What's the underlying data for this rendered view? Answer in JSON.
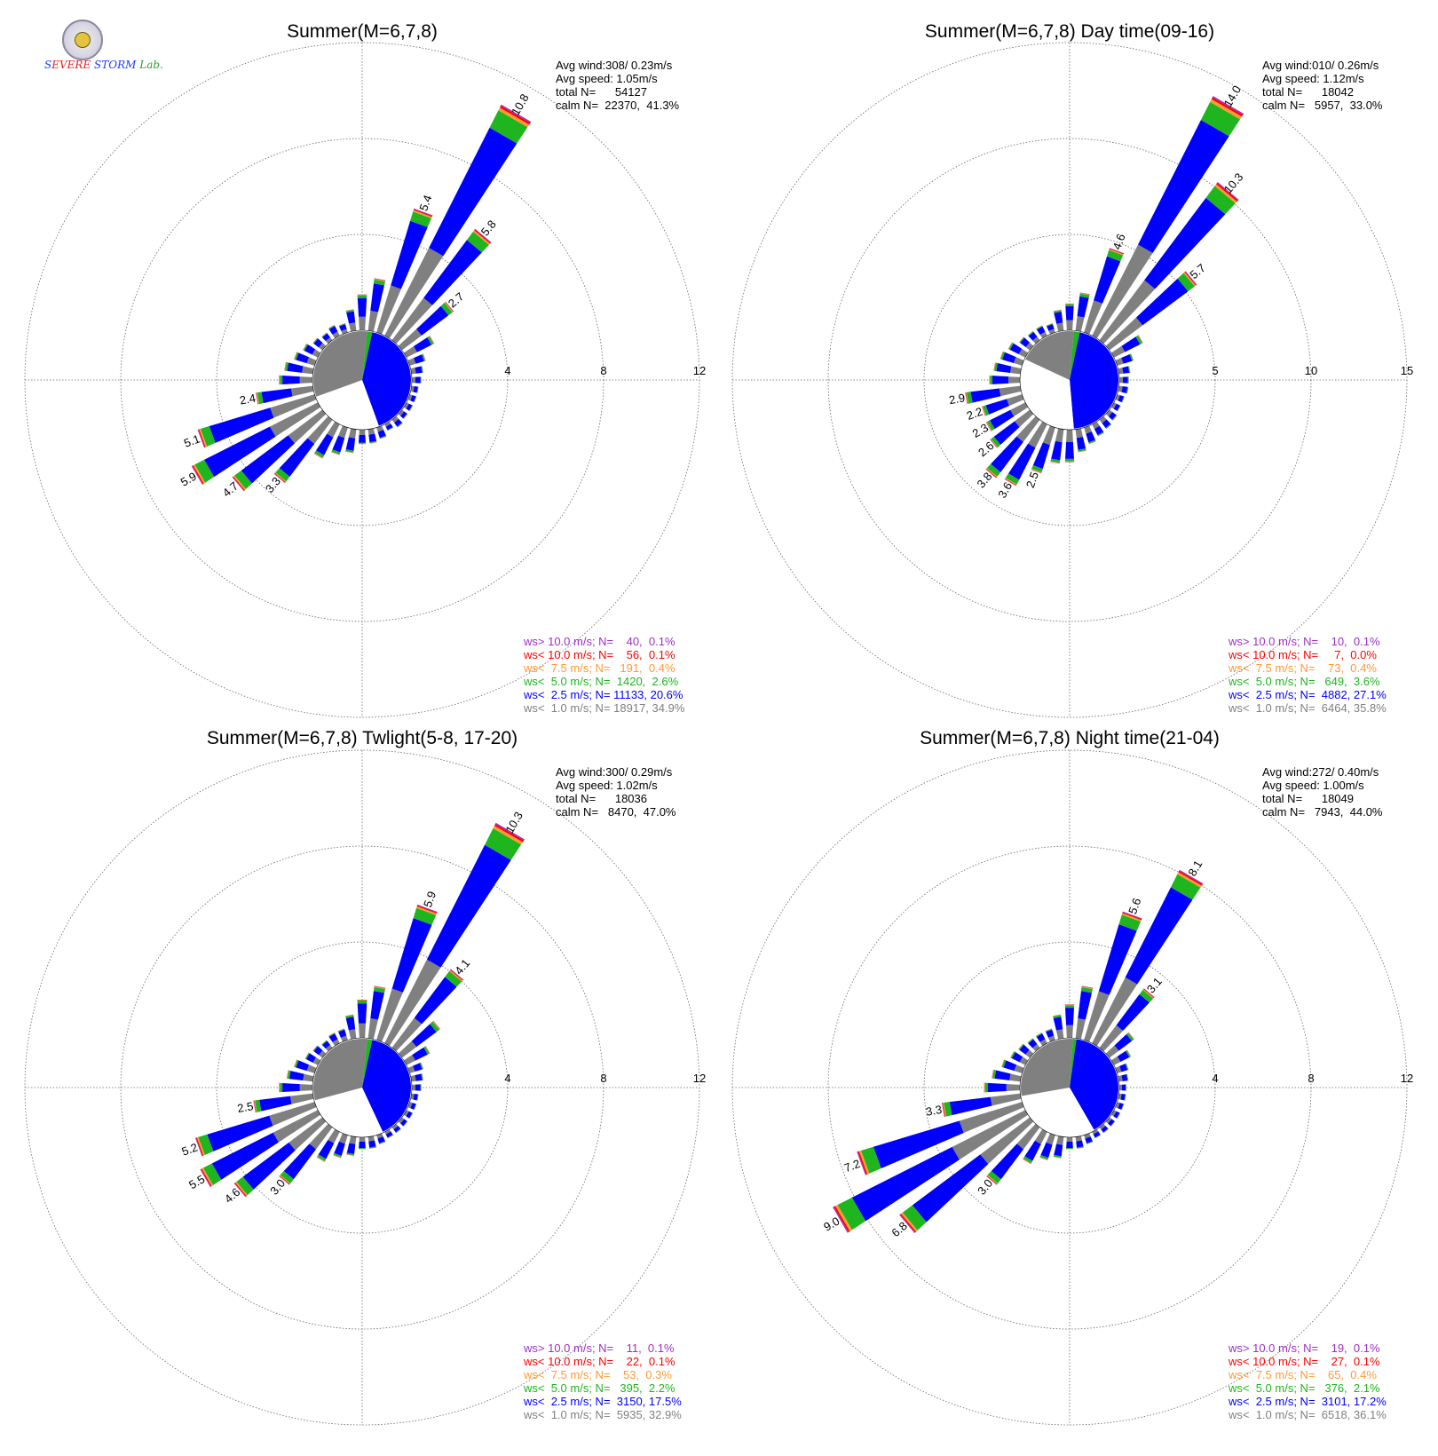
{
  "logo": {
    "part1": "S",
    "part2": "EVERE",
    "part3": "STORM",
    "part4": "Lab."
  },
  "colors": {
    "ws_gt_10": "#9b30c8",
    "ws_lt_10": "#ff0000",
    "ws_lt_7_5": "#ff9933",
    "ws_lt_5": "#1fb51f",
    "ws_lt_2_5": "#0000ff",
    "ws_lt_1": "#808080",
    "grid": "#666666"
  },
  "chart_data": [
    {
      "type": "windrose",
      "title": "Summer(M=6,7,8)",
      "rings": [
        4,
        8,
        12
      ],
      "ring_labels": [
        "4",
        "8",
        "12"
      ],
      "stats": [
        "Avg wind:308/ 0.23m/s",
        "Avg speed: 1.05m/s",
        "total N=      54127",
        "calm N=  22370,  41.3%"
      ],
      "legend": [
        "ws> 10.0 m/s; N=    40,  0.1%",
        "ws< 10.0 m/s; N=    56,  0.1%",
        "ws<  7.5 m/s; N=   191,  0.4%",
        "ws<  5.0 m/s; N=  1420,  2.6%",
        "ws<  2.5 m/s; N= 11133, 20.6%",
        "ws<  1.0 m/s; N= 18917, 34.9%"
      ],
      "calm_pie": [
        {
          "class": "ws<1.0",
          "start": 0,
          "end": 6
        },
        {
          "class": "ws<5.0",
          "start": 6,
          "end": 12
        },
        {
          "class": "ws<2.5",
          "start": 12,
          "end": 160
        },
        {
          "class": "calm",
          "start": 160,
          "end": 250
        },
        {
          "class": "ws<1.0",
          "start": 250,
          "end": 360
        }
      ],
      "petals": [
        {
          "dir": 0,
          "total": 1.5
        },
        {
          "dir": 10,
          "total": 2.2
        },
        {
          "dir": 20,
          "total": 5.4,
          "label": "5.4"
        },
        {
          "dir": 30,
          "total": 10.8,
          "label": "10.8"
        },
        {
          "dir": 40,
          "total": 5.8,
          "label": "5.8"
        },
        {
          "dir": 50,
          "total": 2.7,
          "label": "2.7"
        },
        {
          "dir": 60,
          "total": 1.3
        },
        {
          "dir": 70,
          "total": 0.7
        },
        {
          "dir": 80,
          "total": 0.5
        },
        {
          "dir": 90,
          "total": 0.4
        },
        {
          "dir": 100,
          "total": 0.3
        },
        {
          "dir": 110,
          "total": 0.3
        },
        {
          "dir": 120,
          "total": 0.3
        },
        {
          "dir": 130,
          "total": 0.3
        },
        {
          "dir": 140,
          "total": 0.4
        },
        {
          "dir": 150,
          "total": 0.3
        },
        {
          "dir": 160,
          "total": 0.5
        },
        {
          "dir": 170,
          "total": 0.6
        },
        {
          "dir": 180,
          "total": 0.6
        },
        {
          "dir": 190,
          "total": 1.0
        },
        {
          "dir": 200,
          "total": 1.2
        },
        {
          "dir": 210,
          "total": 1.6
        },
        {
          "dir": 220,
          "total": 3.3,
          "label": "3.3"
        },
        {
          "dir": 230,
          "total": 4.7,
          "label": "4.7"
        },
        {
          "dir": 240,
          "total": 5.9,
          "label": "5.9"
        },
        {
          "dir": 250,
          "total": 5.1,
          "label": "5.1"
        },
        {
          "dir": 260,
          "total": 2.4,
          "label": "2.4"
        },
        {
          "dir": 270,
          "total": 1.4
        },
        {
          "dir": 280,
          "total": 1.2
        },
        {
          "dir": 290,
          "total": 0.9
        },
        {
          "dir": 300,
          "total": 0.7
        },
        {
          "dir": 310,
          "total": 0.5
        },
        {
          "dir": 320,
          "total": 0.4
        },
        {
          "dir": 330,
          "total": 0.5
        },
        {
          "dir": 340,
          "total": 0.4
        },
        {
          "dir": 350,
          "total": 0.9
        }
      ]
    },
    {
      "type": "windrose",
      "title": "Summer(M=6,7,8) Day time(09-16)",
      "rings": [
        5,
        10,
        15
      ],
      "ring_labels": [
        "5",
        "10",
        "15"
      ],
      "stats": [
        "Avg wind:010/ 0.26m/s",
        "Avg speed: 1.12m/s",
        "total N=      18042",
        "calm N=   5957,  33.0%"
      ],
      "legend": [
        "ws> 10.0 m/s; N=    10,  0.1%",
        "ws< 10.0 m/s; N=     7,  0.0%",
        "ws<  7.5 m/s; N=    73,  0.4%",
        "ws<  5.0 m/s; N=   649,  3.6%",
        "ws<  2.5 m/s; N=  4882, 27.1%",
        "ws<  1.0 m/s; N=  6464, 35.8%"
      ],
      "calm_pie": [
        {
          "class": "ws<1.0",
          "start": 0,
          "end": 5
        },
        {
          "class": "ws<5.0",
          "start": 5,
          "end": 12
        },
        {
          "class": "ws<2.5",
          "start": 12,
          "end": 175
        },
        {
          "class": "calm",
          "start": 175,
          "end": 295
        },
        {
          "class": "ws<1.0",
          "start": 295,
          "end": 360
        }
      ],
      "petals": [
        {
          "dir": 0,
          "total": 1.4
        },
        {
          "dir": 10,
          "total": 2.0
        },
        {
          "dir": 20,
          "total": 4.6,
          "label": "4.6"
        },
        {
          "dir": 30,
          "total": 14.0,
          "label": "14.0"
        },
        {
          "dir": 40,
          "total": 10.3,
          "label": "10.3"
        },
        {
          "dir": 50,
          "total": 5.7,
          "label": "5.7"
        },
        {
          "dir": 60,
          "total": 1.7
        },
        {
          "dir": 70,
          "total": 0.9
        },
        {
          "dir": 80,
          "total": 0.6
        },
        {
          "dir": 90,
          "total": 0.5
        },
        {
          "dir": 100,
          "total": 0.5
        },
        {
          "dir": 110,
          "total": 0.4
        },
        {
          "dir": 120,
          "total": 0.4
        },
        {
          "dir": 130,
          "total": 0.5
        },
        {
          "dir": 140,
          "total": 0.6
        },
        {
          "dir": 150,
          "total": 0.7
        },
        {
          "dir": 160,
          "total": 0.9
        },
        {
          "dir": 170,
          "total": 1.2
        },
        {
          "dir": 180,
          "total": 1.7
        },
        {
          "dir": 190,
          "total": 1.8
        },
        {
          "dir": 200,
          "total": 2.5,
          "label": "2.5"
        },
        {
          "dir": 210,
          "total": 3.6,
          "label": "3.6"
        },
        {
          "dir": 220,
          "total": 3.8,
          "label": "3.8"
        },
        {
          "dir": 230,
          "total": 2.6,
          "label": "2.6"
        },
        {
          "dir": 240,
          "total": 2.3,
          "label": "2.3"
        },
        {
          "dir": 250,
          "total": 2.2,
          "label": "2.2"
        },
        {
          "dir": 260,
          "total": 2.9,
          "label": "2.9"
        },
        {
          "dir": 270,
          "total": 1.6
        },
        {
          "dir": 280,
          "total": 1.4
        },
        {
          "dir": 290,
          "total": 1.2
        },
        {
          "dir": 300,
          "total": 1.0
        },
        {
          "dir": 310,
          "total": 0.7
        },
        {
          "dir": 320,
          "total": 0.6
        },
        {
          "dir": 330,
          "total": 0.6
        },
        {
          "dir": 340,
          "total": 0.5
        },
        {
          "dir": 350,
          "total": 1.1
        }
      ]
    },
    {
      "type": "windrose",
      "title": "Summer(M=6,7,8) Twlight(5-8, 17-20)",
      "rings": [
        4,
        8,
        12
      ],
      "ring_labels": [
        "4",
        "8",
        "12"
      ],
      "stats": [
        "Avg wind:300/ 0.29m/s",
        "Avg speed: 1.02m/s",
        "total N=      18036",
        "calm N=   8470,  47.0%"
      ],
      "legend": [
        "ws> 10.0 m/s; N=    11,  0.1%",
        "ws< 10.0 m/s; N=    22,  0.1%",
        "ws<  7.5 m/s; N=    53,  0.3%",
        "ws<  5.0 m/s; N=   395,  2.2%",
        "ws<  2.5 m/s; N=  3150, 17.5%",
        "ws<  1.0 m/s; N=  5935, 32.9%"
      ],
      "calm_pie": [
        {
          "class": "ws<1.0",
          "start": 0,
          "end": 6
        },
        {
          "class": "ws<5.0",
          "start": 6,
          "end": 12
        },
        {
          "class": "ws<2.5",
          "start": 12,
          "end": 155
        },
        {
          "class": "calm",
          "start": 155,
          "end": 255
        },
        {
          "class": "ws<1.0",
          "start": 255,
          "end": 360
        }
      ],
      "petals": [
        {
          "dir": 0,
          "total": 1.6
        },
        {
          "dir": 10,
          "total": 2.2
        },
        {
          "dir": 20,
          "total": 5.9,
          "label": "5.9"
        },
        {
          "dir": 30,
          "total": 10.3,
          "label": "10.3"
        },
        {
          "dir": 40,
          "total": 4.1,
          "label": "4.1"
        },
        {
          "dir": 50,
          "total": 2.0
        },
        {
          "dir": 60,
          "total": 1.1
        },
        {
          "dir": 70,
          "total": 0.6
        },
        {
          "dir": 80,
          "total": 0.5
        },
        {
          "dir": 90,
          "total": 0.4
        },
        {
          "dir": 100,
          "total": 0.3
        },
        {
          "dir": 110,
          "total": 0.3
        },
        {
          "dir": 120,
          "total": 0.3
        },
        {
          "dir": 130,
          "total": 0.3
        },
        {
          "dir": 140,
          "total": 0.3
        },
        {
          "dir": 150,
          "total": 0.3
        },
        {
          "dir": 160,
          "total": 0.4
        },
        {
          "dir": 170,
          "total": 0.5
        },
        {
          "dir": 180,
          "total": 0.5
        },
        {
          "dir": 190,
          "total": 0.8
        },
        {
          "dir": 200,
          "total": 1.0
        },
        {
          "dir": 210,
          "total": 1.4
        },
        {
          "dir": 220,
          "total": 3.0,
          "label": "3.0"
        },
        {
          "dir": 230,
          "total": 4.6,
          "label": "4.6"
        },
        {
          "dir": 240,
          "total": 5.5,
          "label": "5.5"
        },
        {
          "dir": 250,
          "total": 5.2,
          "label": "5.2"
        },
        {
          "dir": 260,
          "total": 2.5,
          "label": "2.5"
        },
        {
          "dir": 270,
          "total": 1.4
        },
        {
          "dir": 280,
          "total": 1.1
        },
        {
          "dir": 290,
          "total": 0.9
        },
        {
          "dir": 300,
          "total": 0.6
        },
        {
          "dir": 310,
          "total": 0.5
        },
        {
          "dir": 320,
          "total": 0.4
        },
        {
          "dir": 330,
          "total": 0.5
        },
        {
          "dir": 340,
          "total": 0.5
        },
        {
          "dir": 350,
          "total": 1.0
        }
      ]
    },
    {
      "type": "windrose",
      "title": "Summer(M=6,7,8) Night time(21-04)",
      "rings": [
        4,
        8,
        12
      ],
      "ring_labels": [
        "4",
        "8",
        "12"
      ],
      "stats": [
        "Avg wind:272/ 0.40m/s",
        "Avg speed: 1.00m/s",
        "total N=      18049",
        "calm N=   7943,  44.0%"
      ],
      "legend": [
        "ws> 10.0 m/s; N=    19,  0.1%",
        "ws< 10.0 m/s; N=    27,  0.1%",
        "ws<  7.5 m/s; N=    65,  0.4%",
        "ws<  5.0 m/s; N=   376,  2.1%",
        "ws<  2.5 m/s; N=  3101, 17.2%",
        "ws<  1.0 m/s; N=  6518, 36.1%"
      ],
      "calm_pie": [
        {
          "class": "ws<1.0",
          "start": 0,
          "end": 4
        },
        {
          "class": "ws<5.0",
          "start": 4,
          "end": 8
        },
        {
          "class": "ws<2.5",
          "start": 8,
          "end": 150
        },
        {
          "class": "calm",
          "start": 150,
          "end": 260
        },
        {
          "class": "ws<1.0",
          "start": 260,
          "end": 360
        }
      ],
      "petals": [
        {
          "dir": 0,
          "total": 1.4
        },
        {
          "dir": 10,
          "total": 2.2
        },
        {
          "dir": 20,
          "total": 5.6,
          "label": "5.6"
        },
        {
          "dir": 30,
          "total": 8.1,
          "label": "8.1"
        },
        {
          "dir": 40,
          "total": 3.1,
          "label": "3.1"
        },
        {
          "dir": 50,
          "total": 1.3
        },
        {
          "dir": 60,
          "total": 0.8
        },
        {
          "dir": 70,
          "total": 0.5
        },
        {
          "dir": 80,
          "total": 0.4
        },
        {
          "dir": 90,
          "total": 0.3
        },
        {
          "dir": 100,
          "total": 0.3
        },
        {
          "dir": 110,
          "total": 0.3
        },
        {
          "dir": 120,
          "total": 0.3
        },
        {
          "dir": 130,
          "total": 0.3
        },
        {
          "dir": 140,
          "total": 0.3
        },
        {
          "dir": 150,
          "total": 0.3
        },
        {
          "dir": 160,
          "total": 0.4
        },
        {
          "dir": 170,
          "total": 0.5
        },
        {
          "dir": 180,
          "total": 0.5
        },
        {
          "dir": 190,
          "total": 0.9
        },
        {
          "dir": 200,
          "total": 1.1
        },
        {
          "dir": 210,
          "total": 1.5
        },
        {
          "dir": 220,
          "total": 3.0,
          "label": "3.0"
        },
        {
          "dir": 230,
          "total": 6.8,
          "label": "6.8"
        },
        {
          "dir": 240,
          "total": 9.0,
          "label": "9.0"
        },
        {
          "dir": 250,
          "total": 7.2,
          "label": "7.2"
        },
        {
          "dir": 260,
          "total": 3.3,
          "label": "3.3"
        },
        {
          "dir": 270,
          "total": 1.5
        },
        {
          "dir": 280,
          "total": 1.2
        },
        {
          "dir": 290,
          "total": 0.9
        },
        {
          "dir": 300,
          "total": 0.7
        },
        {
          "dir": 310,
          "total": 0.6
        },
        {
          "dir": 320,
          "total": 0.5
        },
        {
          "dir": 330,
          "total": 0.5
        },
        {
          "dir": 340,
          "total": 0.5
        },
        {
          "dir": 350,
          "total": 1.0
        }
      ]
    }
  ]
}
